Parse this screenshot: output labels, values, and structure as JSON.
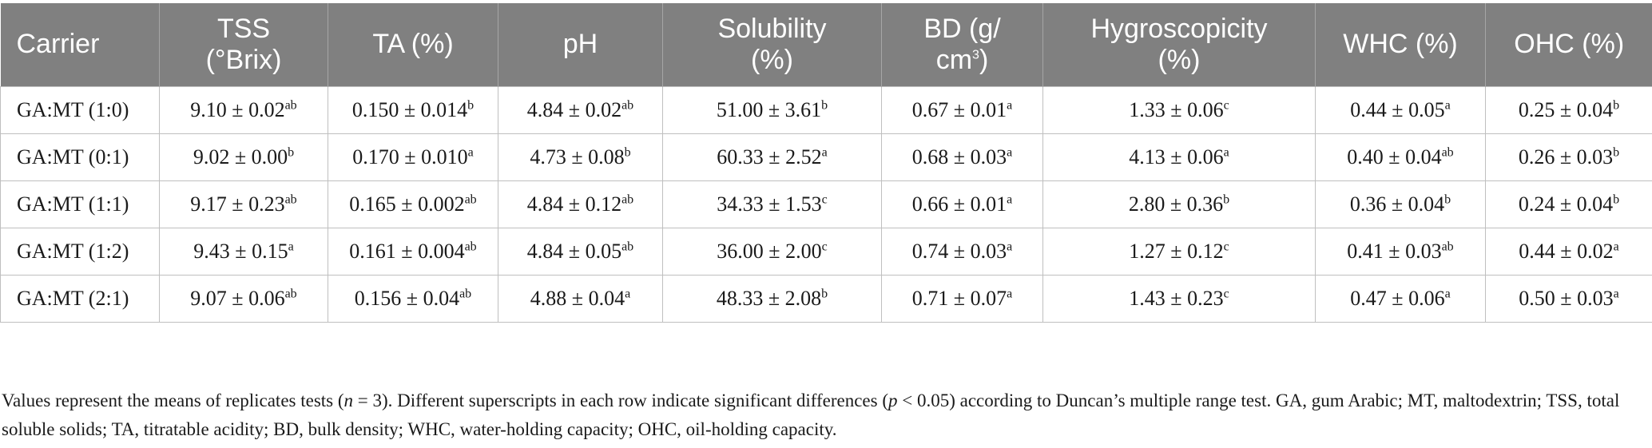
{
  "table": {
    "headers": [
      {
        "line1": "Carrier",
        "line2": ""
      },
      {
        "line1": "TSS",
        "line2": "(°Brix)"
      },
      {
        "line1": "TA (%)",
        "line2": ""
      },
      {
        "line1": "pH",
        "line2": ""
      },
      {
        "line1": "Solubility",
        "line2": "(%)"
      },
      {
        "line1": "BD (g/",
        "line2": "cm",
        "line2_sup": "3",
        "line2_tail": ")"
      },
      {
        "line1": "Hygroscopicity",
        "line2": "(%)"
      },
      {
        "line1": "WHC (%)",
        "line2": ""
      },
      {
        "line1": "OHC (%)",
        "line2": ""
      }
    ],
    "rows": [
      {
        "carrier": "GA:MT (1:0)",
        "cells": [
          {
            "v": "9.10 ± 0.02",
            "s": "ab"
          },
          {
            "v": "0.150 ± 0.014",
            "s": "b"
          },
          {
            "v": "4.84 ± 0.02",
            "s": "ab"
          },
          {
            "v": "51.00 ± 3.61",
            "s": "b"
          },
          {
            "v": "0.67 ± 0.01",
            "s": "a"
          },
          {
            "v": "1.33 ± 0.06",
            "s": "c"
          },
          {
            "v": "0.44 ± 0.05",
            "s": "a"
          },
          {
            "v": "0.25 ± 0.04",
            "s": "b"
          }
        ]
      },
      {
        "carrier": "GA:MT (0:1)",
        "cells": [
          {
            "v": "9.02 ± 0.00",
            "s": "b"
          },
          {
            "v": "0.170 ± 0.010",
            "s": "a"
          },
          {
            "v": "4.73 ± 0.08",
            "s": "b"
          },
          {
            "v": "60.33 ± 2.52",
            "s": "a"
          },
          {
            "v": "0.68 ± 0.03",
            "s": "a"
          },
          {
            "v": "4.13 ± 0.06",
            "s": "a"
          },
          {
            "v": "0.40 ± 0.04",
            "s": "ab"
          },
          {
            "v": "0.26 ± 0.03",
            "s": "b"
          }
        ]
      },
      {
        "carrier": "GA:MT (1:1)",
        "cells": [
          {
            "v": "9.17 ± 0.23",
            "s": "ab"
          },
          {
            "v": "0.165 ± 0.002",
            "s": "ab"
          },
          {
            "v": "4.84 ± 0.12",
            "s": "ab"
          },
          {
            "v": "34.33 ± 1.53",
            "s": "c"
          },
          {
            "v": "0.66 ± 0.01",
            "s": "a"
          },
          {
            "v": "2.80 ± 0.36",
            "s": "b"
          },
          {
            "v": "0.36 ± 0.04",
            "s": "b"
          },
          {
            "v": "0.24 ± 0.04",
            "s": "b"
          }
        ]
      },
      {
        "carrier": "GA:MT (1:2)",
        "cells": [
          {
            "v": "9.43 ± 0.15",
            "s": "a"
          },
          {
            "v": "0.161 ± 0.004",
            "s": "ab"
          },
          {
            "v": "4.84 ± 0.05",
            "s": "ab"
          },
          {
            "v": "36.00 ± 2.00",
            "s": "c"
          },
          {
            "v": "0.74 ± 0.03",
            "s": "a"
          },
          {
            "v": "1.27 ± 0.12",
            "s": "c"
          },
          {
            "v": "0.41 ± 0.03",
            "s": "ab"
          },
          {
            "v": "0.44 ± 0.02",
            "s": "a"
          }
        ]
      },
      {
        "carrier": "GA:MT (2:1)",
        "cells": [
          {
            "v": "9.07 ± 0.06",
            "s": "ab"
          },
          {
            "v": "0.156 ± 0.04",
            "s": "ab"
          },
          {
            "v": "4.88 ± 0.04",
            "s": "a"
          },
          {
            "v": "48.33 ± 2.08",
            "s": "b"
          },
          {
            "v": "0.71 ± 0.07",
            "s": "a"
          },
          {
            "v": "1.43 ± 0.23",
            "s": "c"
          },
          {
            "v": "0.47 ± 0.06",
            "s": "a"
          },
          {
            "v": "0.50 ± 0.03",
            "s": "a"
          }
        ]
      }
    ]
  },
  "footnote": {
    "part1": "Values represent the means of replicates tests (",
    "n_var": "n",
    "part2": " = 3). Different superscripts in each row indicate significant differences (",
    "p_var": "p",
    "part3": " < 0.05) according to Duncan’s multiple range test. GA, gum Arabic; MT, maltodextrin; TSS, total soluble solids; TA, titratable acidity; BD, bulk density; WHC, water-holding capacity; OHC, oil-holding capacity."
  }
}
